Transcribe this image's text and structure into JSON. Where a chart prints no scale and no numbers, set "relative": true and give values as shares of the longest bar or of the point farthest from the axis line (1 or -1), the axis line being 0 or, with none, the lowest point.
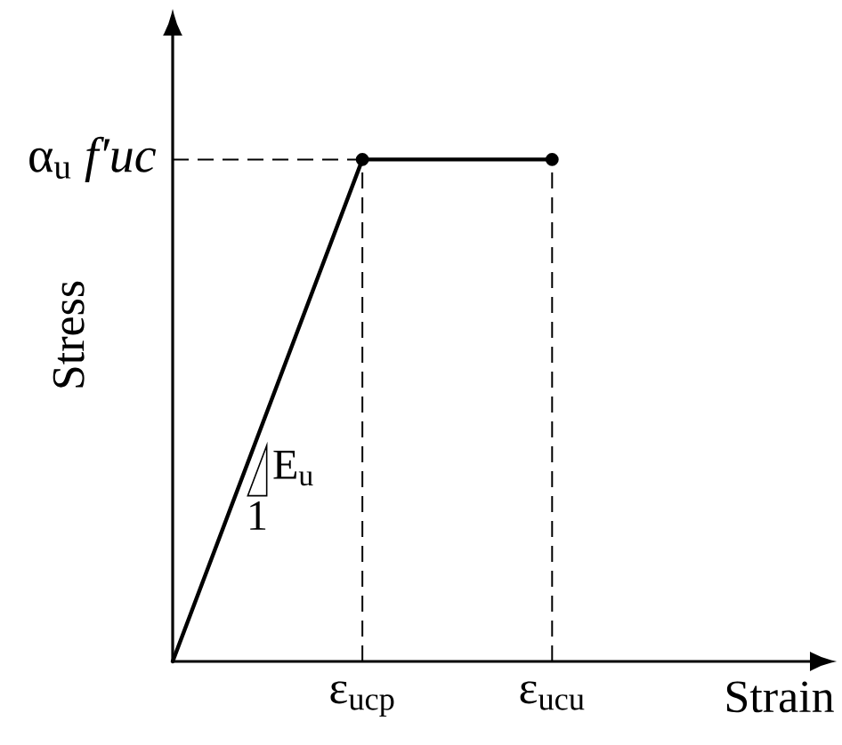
{
  "chart_data": {
    "type": "line",
    "relative": true,
    "xlabel": "Strain",
    "ylabel": "Stress",
    "categories": [
      null,
      "ε$_{ucp}$",
      "ε$_{ucu}$"
    ],
    "series": [
      {
        "color": "#000000",
        "values": [
          0,
          1,
          null
        ]
      },
      {
        "color": "#000000",
        "values": [
          null,
          1,
          1
        ],
        "marker": "circle"
      }
    ],
    "ref_lines": [
      {
        "axis": "y",
        "value": 1,
        "label": "α$_{u}$ *f′uc*",
        "line_style": "dashed",
        "color": "#000000"
      },
      {
        "axis": "x",
        "value": "ε$_{ucp}$",
        "line_style": "dashed",
        "color": "#000000"
      },
      {
        "axis": "x",
        "value": "ε$_{ucu}$",
        "line_style": "dashed",
        "color": "#000000"
      }
    ],
    "annotations": [
      "E$_{u}$",
      "1"
    ]
  }
}
